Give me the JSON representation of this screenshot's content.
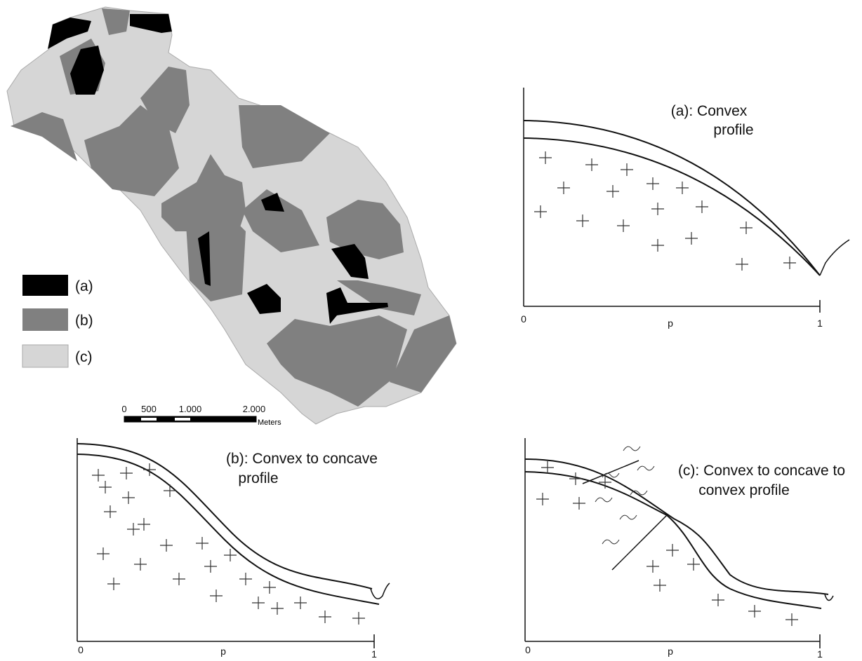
{
  "map": {
    "legend": [
      {
        "label": "(a)"
      },
      {
        "label": "(b)"
      },
      {
        "label": "(c)"
      }
    ],
    "scale_bar": {
      "ticks": [
        "0",
        "500",
        "1.000",
        "2.000"
      ],
      "unit": "Meters"
    }
  },
  "profiles": [
    {
      "title_lines": [
        "(a): Convex",
        "profile"
      ],
      "x_start": "0",
      "x_label": "p",
      "x_end": "1"
    },
    {
      "title_lines": [
        "(b): Convex to concave",
        "profile"
      ],
      "x_start": "0",
      "x_label": "p",
      "x_end": "1"
    },
    {
      "title_lines": [
        "(c): Convex to concave to",
        "convex profile"
      ],
      "x_start": "0",
      "x_label": "p",
      "x_end": "1"
    }
  ]
}
